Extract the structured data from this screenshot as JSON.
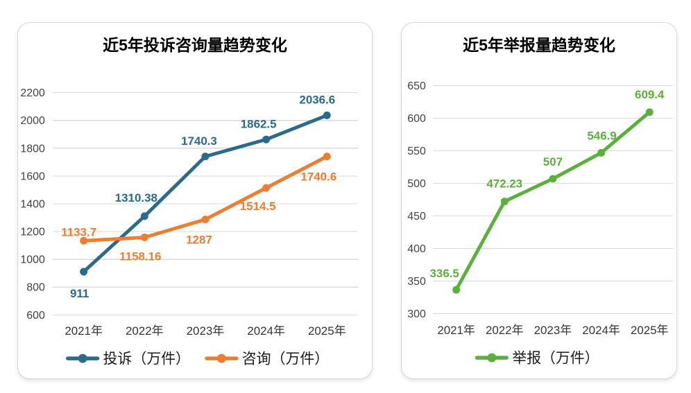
{
  "chart_data": [
    {
      "type": "line",
      "title": "近5年投诉咨询量趋势变化",
      "categories": [
        "2021年",
        "2022年",
        "2023年",
        "2024年",
        "2025年"
      ],
      "series": [
        {
          "name": "投诉（万件）",
          "color": "#2A6A8D",
          "values": [
            911,
            1310.38,
            1740.3,
            1862.5,
            2036.6
          ],
          "label_offsets": [
            [
              -6,
              31
            ],
            [
              -12,
              -27
            ],
            [
              -9,
              -23
            ],
            [
              -11,
              -23
            ],
            [
              -14,
              -23
            ]
          ]
        },
        {
          "name": "咨询（万件）",
          "color": "#ED7D31",
          "values": [
            1133.7,
            1158.16,
            1287,
            1514.5,
            1740.6
          ],
          "label_offsets": [
            [
              -7,
              -13
            ],
            [
              -6,
              27
            ],
            [
              -9,
              29
            ],
            [
              -12,
              26
            ],
            [
              -12,
              29
            ]
          ]
        }
      ],
      "ylim": [
        600,
        2200
      ],
      "y_step": 200,
      "grid": true,
      "legend_position": "bottom",
      "xlabel": "",
      "ylabel": ""
    },
    {
      "type": "line",
      "title": "近5年举报量趋势变化",
      "categories": [
        "2021年",
        "2022年",
        "2023年",
        "2024年",
        "2025年"
      ],
      "series": [
        {
          "name": "举报（万件）",
          "color": "#5BB03C",
          "values": [
            336.5,
            472.23,
            507,
            546.9,
            609.4
          ],
          "label_offsets": [
            [
              -17,
              -24
            ],
            [
              0,
              -26
            ],
            [
              0,
              -25
            ],
            [
              1,
              -25
            ],
            [
              0,
              -26
            ]
          ]
        }
      ],
      "ylim": [
        300,
        650
      ],
      "y_step": 50,
      "grid": true,
      "legend_position": "bottom",
      "xlabel": "",
      "ylabel": ""
    }
  ]
}
